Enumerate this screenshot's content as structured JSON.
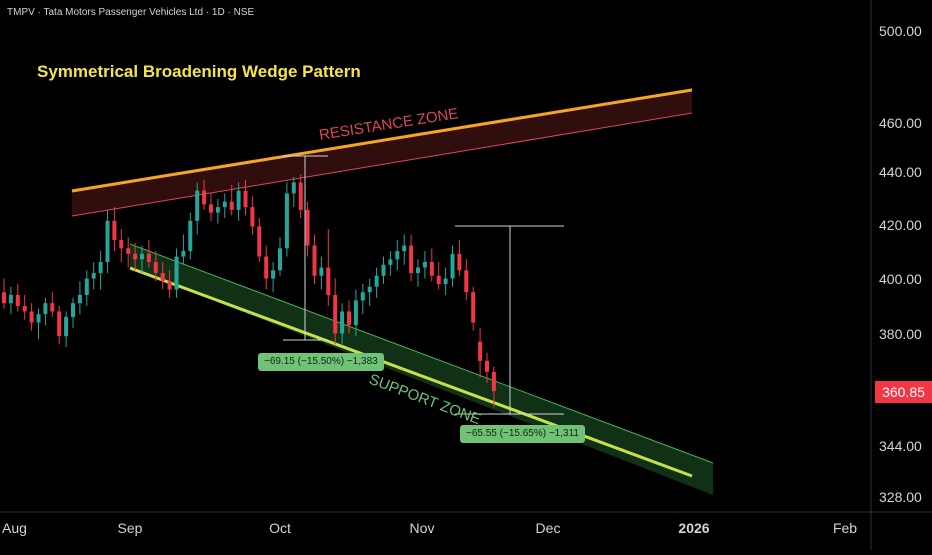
{
  "header": {
    "symbol_line": "TMPV · Tata Motors Passenger Vehicles Ltd · 1D · NSE"
  },
  "annotations": {
    "pattern_title": "Symmetrical Broadening Wedge Pattern",
    "resistance_label": "RESISTANCE ZONE",
    "support_label": "SUPPORT ZONE",
    "measure_1": "−69.15 (−15.50%) −1,383",
    "measure_2": "−65.55 (−15.65%) −1,311"
  },
  "last_price": "360.85",
  "colors": {
    "background": "#000000",
    "up_candle": "#26a69a",
    "down_candle": "#f23645",
    "resistance_line": "#f5a623",
    "support_line": "#c7e04a",
    "title": "#f5e44a",
    "price_badge": "#f23645",
    "measure_label": "#6fc276"
  },
  "chart_data": {
    "type": "candlestick",
    "title": "",
    "xlabel": "",
    "ylabel": "",
    "y_ticks": [
      "500.00",
      "460.00",
      "440.00",
      "420.00",
      "400.00",
      "380.00",
      "344.00",
      "328.00"
    ],
    "x_ticks": [
      "Aug",
      "Sep",
      "Oct",
      "Nov",
      "Dec",
      "2026",
      "Feb"
    ],
    "ylim": [
      322,
      512
    ],
    "grid": false,
    "series": [
      {
        "values": [
          [
            397,
            402,
            391,
            393
          ],
          [
            393,
            399,
            389,
            396
          ],
          [
            396,
            400,
            390,
            392
          ],
          [
            392,
            396,
            387,
            390
          ],
          [
            390,
            393,
            383,
            386
          ],
          [
            386,
            391,
            380,
            389
          ],
          [
            389,
            395,
            385,
            393
          ],
          [
            393,
            397,
            388,
            390
          ],
          [
            390,
            392,
            378,
            381
          ],
          [
            381,
            390,
            377,
            388
          ],
          [
            388,
            395,
            384,
            393
          ],
          [
            393,
            401,
            389,
            396
          ],
          [
            396,
            405,
            392,
            402
          ],
          [
            402,
            408,
            398,
            404
          ],
          [
            404,
            412,
            398,
            408
          ],
          [
            408,
            427,
            404,
            423
          ],
          [
            423,
            428,
            412,
            416
          ],
          [
            416,
            420,
            408,
            413
          ],
          [
            413,
            417,
            406,
            411
          ],
          [
            411,
            415,
            405,
            409
          ],
          [
            409,
            414,
            404,
            411
          ],
          [
            411,
            416,
            406,
            408
          ],
          [
            408,
            412,
            401,
            404
          ],
          [
            404,
            408,
            398,
            401
          ],
          [
            401,
            405,
            395,
            398
          ],
          [
            398,
            413,
            395,
            410
          ],
          [
            410,
            418,
            407,
            412
          ],
          [
            412,
            426,
            409,
            423
          ],
          [
            423,
            437,
            418,
            434
          ],
          [
            434,
            438,
            427,
            429
          ],
          [
            429,
            433,
            423,
            426
          ],
          [
            426,
            431,
            422,
            428
          ],
          [
            428,
            433,
            424,
            430
          ],
          [
            430,
            436,
            425,
            427
          ],
          [
            427,
            437,
            423,
            434
          ],
          [
            434,
            438,
            425,
            428
          ],
          [
            428,
            432,
            418,
            421
          ],
          [
            421,
            424,
            408,
            410
          ],
          [
            410,
            414,
            398,
            402
          ],
          [
            402,
            408,
            397,
            405
          ],
          [
            405,
            417,
            403,
            413
          ],
          [
            413,
            437,
            410,
            433
          ],
          [
            433,
            439,
            428,
            437
          ],
          [
            437,
            440,
            424,
            427
          ],
          [
            427,
            430,
            410,
            414
          ],
          [
            414,
            418,
            400,
            403
          ],
          [
            403,
            410,
            398,
            406
          ],
          [
            406,
            420,
            392,
            396
          ],
          [
            396,
            402,
            378,
            382
          ],
          [
            382,
            393,
            378,
            390
          ],
          [
            390,
            394,
            382,
            385
          ],
          [
            385,
            398,
            381,
            394
          ],
          [
            394,
            400,
            389,
            397
          ],
          [
            397,
            402,
            392,
            399
          ],
          [
            399,
            406,
            395,
            403
          ],
          [
            403,
            410,
            400,
            407
          ],
          [
            407,
            412,
            403,
            409
          ],
          [
            409,
            416,
            405,
            412
          ],
          [
            412,
            418,
            407,
            414
          ],
          [
            414,
            418,
            401,
            404
          ],
          [
            404,
            409,
            399,
            406
          ],
          [
            406,
            412,
            402,
            408
          ],
          [
            408,
            413,
            401,
            403
          ],
          [
            403,
            408,
            398,
            400
          ],
          [
            400,
            406,
            396,
            402
          ],
          [
            402,
            414,
            399,
            411
          ],
          [
            411,
            416,
            403,
            405
          ],
          [
            405,
            409,
            394,
            397
          ],
          [
            397,
            399,
            383,
            386
          ],
          [
            379,
            384,
            366,
            372
          ],
          [
            372,
            375,
            364,
            368
          ],
          [
            368,
            370,
            355,
            361
          ]
        ]
      }
    ]
  }
}
